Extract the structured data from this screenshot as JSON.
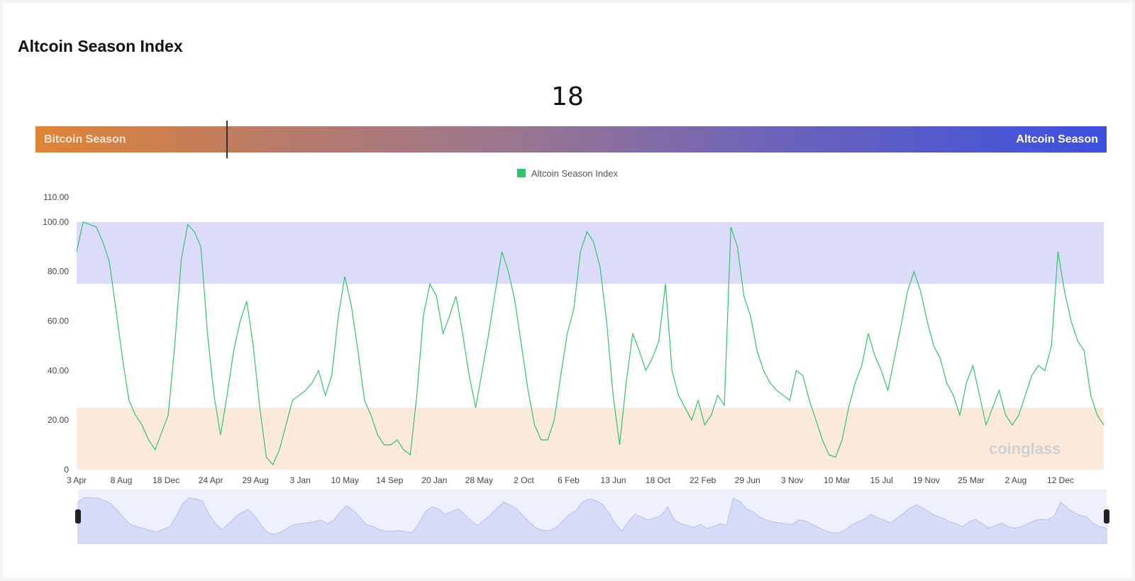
{
  "title": "Altcoin Season Index",
  "current_value": "18",
  "gauge": {
    "left_label": "Bitcoin Season",
    "right_label": "Altcoin Season",
    "value": 18
  },
  "legend": {
    "label": "Altcoin Season Index",
    "color": "#2fc46b"
  },
  "watermark": "coinglass",
  "colors": {
    "line": "#2fc46b",
    "altcoin_zone": "#dcdcfa",
    "bitcoin_zone": "#fbe9dc",
    "overview_fill": "#d6dcf8",
    "overview_bg": "#eef1fd"
  },
  "chart_data": {
    "type": "line",
    "title": "",
    "xlabel": "",
    "ylabel": "",
    "ylim": [
      0,
      110
    ],
    "y_ticks": [
      "0",
      "20.00",
      "40.00",
      "60.00",
      "80.00",
      "100.00",
      "110.00"
    ],
    "y_tick_values": [
      0,
      20,
      40,
      60,
      80,
      100,
      110
    ],
    "x_tick_labels": [
      "3 Apr",
      "8 Aug",
      "18 Dec",
      "24 Apr",
      "29 Aug",
      "3 Jan",
      "10 May",
      "14 Sep",
      "20 Jan",
      "28 May",
      "2 Oct",
      "6 Feb",
      "13 Jun",
      "18 Oct",
      "22 Feb",
      "29 Jun",
      "3 Nov",
      "10 Mar",
      "15 Jul",
      "19 Nov",
      "25 Mar",
      "2 Aug",
      "12 Dec"
    ],
    "bands": [
      {
        "name": "Altcoin Season",
        "from": 75,
        "to": 100
      },
      {
        "name": "Bitcoin Season",
        "from": 0,
        "to": 25
      }
    ],
    "grid": false,
    "legend_position": "top-center",
    "series": [
      {
        "name": "Altcoin Season Index",
        "values": [
          88,
          100,
          99,
          98,
          92,
          84,
          65,
          45,
          28,
          22,
          18,
          12,
          8,
          15,
          22,
          50,
          85,
          99,
          96,
          90,
          55,
          30,
          14,
          30,
          48,
          60,
          68,
          50,
          25,
          5,
          2,
          8,
          18,
          28,
          30,
          32,
          35,
          40,
          30,
          38,
          62,
          78,
          66,
          48,
          28,
          22,
          14,
          10,
          10,
          12,
          8,
          6,
          30,
          62,
          75,
          70,
          55,
          62,
          70,
          55,
          38,
          25,
          40,
          55,
          72,
          88,
          80,
          68,
          50,
          32,
          18,
          12,
          12,
          20,
          38,
          55,
          65,
          88,
          96,
          92,
          82,
          60,
          30,
          10,
          35,
          55,
          48,
          40,
          45,
          52,
          75,
          40,
          30,
          25,
          20,
          28,
          18,
          22,
          30,
          26,
          98,
          90,
          70,
          62,
          48,
          40,
          35,
          32,
          30,
          28,
          40,
          38,
          28,
          20,
          12,
          6,
          5,
          12,
          25,
          35,
          42,
          55,
          46,
          40,
          32,
          45,
          58,
          72,
          80,
          72,
          60,
          50,
          45,
          35,
          30,
          22,
          35,
          42,
          30,
          18,
          25,
          32,
          22,
          18,
          22,
          30,
          38,
          42,
          40,
          50,
          88,
          72,
          60,
          52,
          48,
          30,
          22,
          18
        ]
      }
    ]
  },
  "overview": {
    "start_handle": "start-handle",
    "end_handle": "end-handle"
  }
}
